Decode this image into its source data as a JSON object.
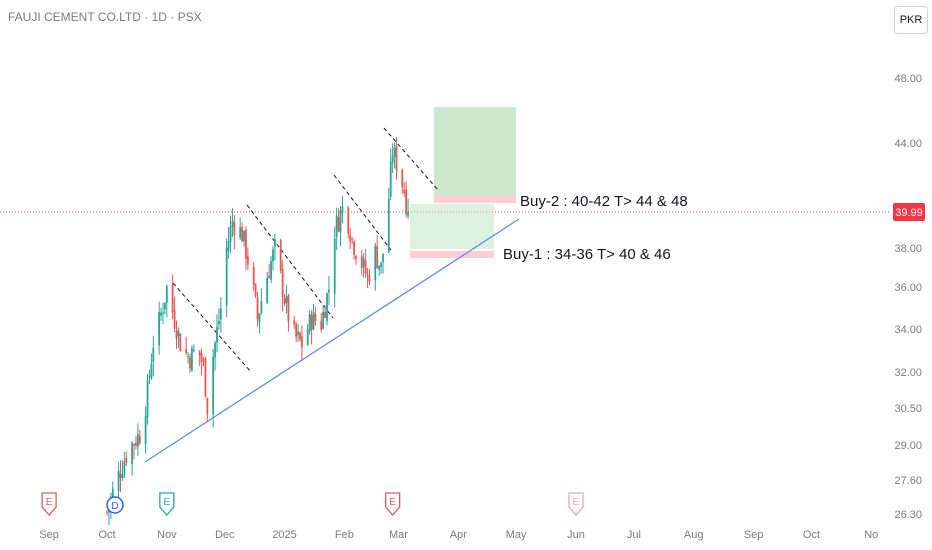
{
  "header": {
    "symbol_line": "FAUJI CEMENT CO.LTD · 1D · PSX",
    "currency": "PKR"
  },
  "chart_data": {
    "type": "candlestick",
    "price_scale": {
      "ticks": [
        26.3,
        27.6,
        29.0,
        30.5,
        32.0,
        34.0,
        36.0,
        38.0,
        40.0,
        44.0,
        48.0
      ],
      "tick_labels": [
        "26.30",
        "27.60",
        "29.00",
        "30.50",
        "32.00",
        "34.00",
        "36.00",
        "38.00",
        "40.00",
        "44.00",
        "48.00"
      ],
      "scale": "log"
    },
    "time_scale": {
      "labels": [
        "Sep",
        "Oct",
        "Nov",
        "Dec",
        "2025",
        "Feb",
        "Mar",
        "Apr",
        "May",
        "Jun",
        "Jul",
        "Aug",
        "Sep",
        "Oct",
        "No"
      ],
      "label_dates": [
        "2024-09-01",
        "2024-10-01",
        "2024-11-01",
        "2024-12-01",
        "2025-01-01",
        "2025-02-01",
        "2025-03-01",
        "2025-04-01",
        "2025-05-01",
        "2025-06-01",
        "2025-07-01",
        "2025-08-01",
        "2025-09-01",
        "2025-10-01",
        "2025-11-01"
      ]
    },
    "last_price": {
      "value": 39.99,
      "label": "39.99"
    },
    "price_path": [
      [
        "2024-10-01",
        26.4
      ],
      [
        "2024-10-06",
        27.6
      ],
      [
        "2024-10-12",
        28.8
      ],
      [
        "2024-10-19",
        29.5
      ],
      [
        "2024-10-22",
        31.2
      ],
      [
        "2024-10-25",
        33.4
      ],
      [
        "2024-10-28",
        34.3
      ],
      [
        "2024-11-01",
        36.0
      ],
      [
        "2024-11-05",
        34.5
      ],
      [
        "2024-11-09",
        33.0
      ],
      [
        "2024-11-13",
        32.7
      ],
      [
        "2024-11-17",
        33.1
      ],
      [
        "2024-11-20",
        32.3
      ],
      [
        "2024-11-22",
        30.6
      ],
      [
        "2024-11-25",
        32.8
      ],
      [
        "2024-11-29",
        35.0
      ],
      [
        "2024-12-02",
        38.0
      ],
      [
        "2024-12-05",
        39.5
      ],
      [
        "2024-12-10",
        38.8
      ],
      [
        "2024-12-14",
        37.0
      ],
      [
        "2024-12-18",
        34.5
      ],
      [
        "2024-12-22",
        36.3
      ],
      [
        "2024-12-27",
        38.0
      ],
      [
        "2025-01-01",
        35.5
      ],
      [
        "2025-01-05",
        33.8
      ],
      [
        "2025-01-10",
        33.3
      ],
      [
        "2025-01-15",
        34.5
      ],
      [
        "2025-01-20",
        34.3
      ],
      [
        "2025-01-24",
        36.0
      ],
      [
        "2025-01-27",
        39.0
      ],
      [
        "2025-02-01",
        40.5
      ],
      [
        "2025-02-05",
        38.5
      ],
      [
        "2025-02-09",
        37.5
      ],
      [
        "2025-02-13",
        36.5
      ],
      [
        "2025-02-17",
        37.8
      ],
      [
        "2025-02-20",
        37.0
      ],
      [
        "2025-02-23",
        39.5
      ],
      [
        "2025-02-26",
        43.5
      ],
      [
        "2025-03-01",
        42.5
      ],
      [
        "2025-03-04",
        41.2
      ],
      [
        "2025-03-06",
        39.99
      ]
    ],
    "markers": [
      {
        "date": "2024-09-01",
        "label": "E"
      },
      {
        "date": "2024-10-01",
        "label": "D"
      },
      {
        "date": "2024-11-01",
        "label": "E"
      },
      {
        "date": "2025-02-26",
        "label": "E"
      },
      {
        "date": "2025-06-01",
        "label": "E"
      }
    ],
    "annotations": [
      {
        "label": "Buy-2 : 40-42 T> 44 & 48"
      },
      {
        "label": "Buy-1 : 34-36 T> 40 & 46"
      }
    ],
    "colors": {
      "up": "#26a69a",
      "down": "#ef5350",
      "trendline": "#5b8def",
      "target_zone": "#c8e6c9",
      "entry_zone": "#ffcdd2",
      "last_price": "#f23645",
      "axis_text": "#787b86",
      "earnings_marker": "#e05a5a",
      "dividend_marker": "#2962ff"
    }
  }
}
